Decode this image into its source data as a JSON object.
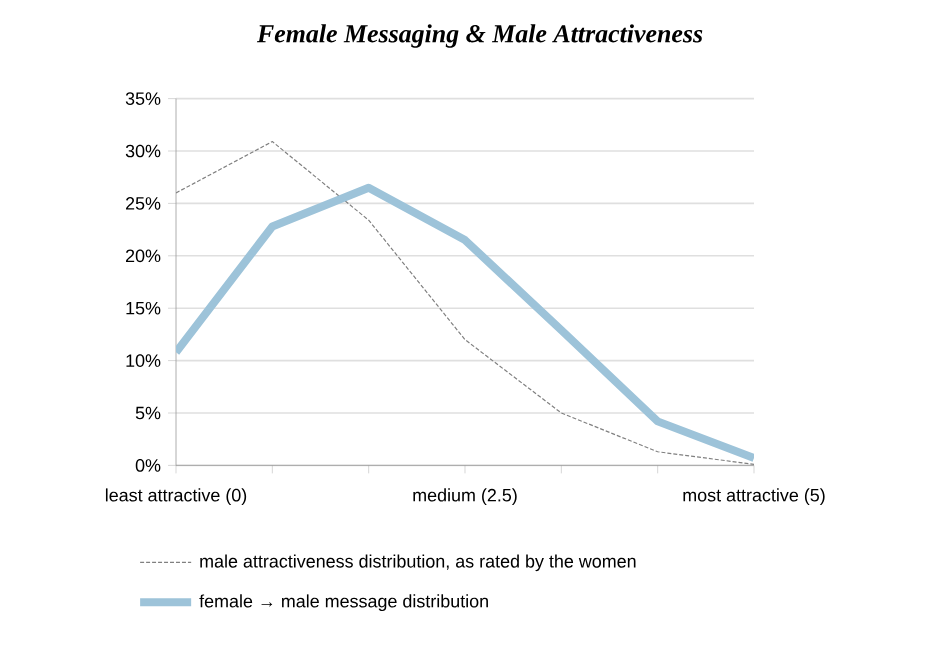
{
  "chart_data": {
    "type": "line",
    "title": "Female Messaging & Male Attractiveness",
    "categories": [
      "least attractive (0)",
      null,
      null,
      "medium (2.5)",
      null,
      null,
      "most attractive (5)"
    ],
    "series": [
      {
        "name": "male attractiveness distribution, as rated by the women",
        "color": "#808080",
        "line_style": "dashed",
        "values": [
          26,
          30.9,
          23.4,
          12,
          5,
          1.3,
          0.1
        ]
      },
      {
        "name": "female → male message distribution",
        "color": "#9dc3d9",
        "line_style": "solid",
        "values": [
          10.8,
          22.8,
          26.5,
          21.5,
          12.9,
          4.2,
          0.7
        ]
      }
    ],
    "ylim": [
      0,
      35
    ],
    "yticks": [
      {
        "value": 0,
        "label": "0%"
      },
      {
        "value": 5,
        "label": "5%"
      },
      {
        "value": 10,
        "label": "10%"
      },
      {
        "value": 15,
        "label": "15%"
      },
      {
        "value": 20,
        "label": "20%"
      },
      {
        "value": 25,
        "label": "25%"
      },
      {
        "value": 30,
        "label": "30%"
      },
      {
        "value": 35,
        "label": "35%"
      }
    ],
    "grid": "y",
    "legend": "bottom",
    "marker": "none"
  }
}
